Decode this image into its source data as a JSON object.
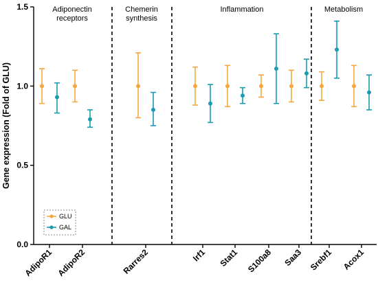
{
  "chart_data": {
    "type": "scatter",
    "ylabel": "Gene expression (Fold of GLU)",
    "ylim": [
      0,
      1.5
    ],
    "yticks": [
      "0.0",
      "0.5",
      "1.0",
      "1.5"
    ],
    "ytick_values": [
      0,
      0.5,
      1.0,
      1.5
    ],
    "categories": [
      "AdipoR1",
      "AdipoR2",
      "Rarres2",
      "Irf1",
      "Stat1",
      "S100a8",
      "Saa3",
      "Srebf1",
      "Acox1"
    ],
    "groups": [
      {
        "label_lines": [
          "Adiponectin",
          "receptors"
        ],
        "categories": [
          "AdipoR1",
          "AdipoR2"
        ]
      },
      {
        "label_lines": [
          "Chemerin",
          "synthesis"
        ],
        "categories": [
          "Rarres2"
        ]
      },
      {
        "label_lines": [
          "Inflammation"
        ],
        "categories": [
          "Irf1",
          "Stat1",
          "S100a8",
          "Saa3"
        ]
      },
      {
        "label_lines": [
          "Metabolism"
        ],
        "categories": [
          "Srebf1",
          "Acox1"
        ]
      }
    ],
    "series": [
      {
        "name": "GLU",
        "color": "#F5A742",
        "values": [
          1.0,
          1.0,
          1.0,
          1.0,
          1.0,
          1.0,
          1.0,
          1.0,
          1.0
        ],
        "err_low": [
          0.89,
          0.9,
          0.8,
          0.88,
          0.87,
          0.93,
          0.9,
          0.91,
          0.87
        ],
        "err_high": [
          1.11,
          1.1,
          1.21,
          1.12,
          1.13,
          1.07,
          1.1,
          1.09,
          1.13
        ]
      },
      {
        "name": "GAL",
        "color": "#1A9BAF",
        "values": [
          0.93,
          0.79,
          0.85,
          0.89,
          0.94,
          1.11,
          1.08,
          1.23,
          0.96
        ],
        "err_low": [
          0.83,
          0.74,
          0.75,
          0.77,
          0.89,
          0.89,
          0.99,
          1.05,
          0.85
        ],
        "err_high": [
          1.02,
          0.85,
          0.96,
          1.01,
          0.99,
          1.33,
          1.17,
          1.41,
          1.07
        ]
      }
    ],
    "legend_position": "bottom-left",
    "grid": false
  }
}
